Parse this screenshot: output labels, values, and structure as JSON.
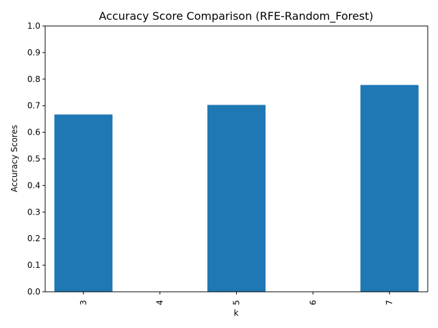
{
  "chart_data": {
    "type": "bar",
    "title": "Accuracy Score Comparison (RFE-Random_Forest)",
    "xlabel": "k",
    "ylabel": "Accuracy Scores",
    "categories": [
      "3",
      "4",
      "5",
      "6",
      "7"
    ],
    "values": [
      0.667,
      0,
      0.703,
      0,
      0.778
    ],
    "ylim": [
      0,
      1.0
    ],
    "yticks": [
      "0.0",
      "0.1",
      "0.2",
      "0.3",
      "0.4",
      "0.5",
      "0.6",
      "0.7",
      "0.8",
      "0.9",
      "1.0"
    ],
    "bar_color": "#1f77b4",
    "grid": false
  }
}
